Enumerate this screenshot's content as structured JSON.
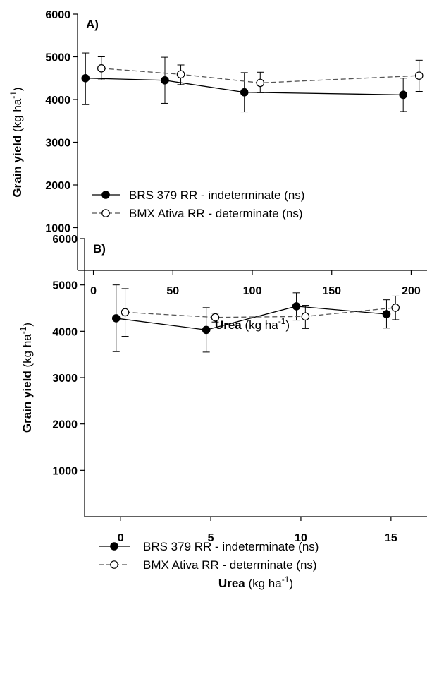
{
  "chart_data": [
    {
      "type": "line",
      "panel_label": "A)",
      "x_label_bold": "Urea",
      "x_label_unit_base": " (kg ha",
      "x_label_unit_exp": "-1",
      "x_label_unit_close": ")",
      "y_label_bold": "Grain yield",
      "y_label_unit_base": " (kg ha",
      "y_label_unit_exp": "-1",
      "y_label_unit_close": ")",
      "xlim": [
        -10,
        210
      ],
      "ylim": [
        0,
        6000
      ],
      "x_ticks": [
        0,
        50,
        100,
        150,
        200
      ],
      "y_ticks": [
        1000,
        2000,
        3000,
        4000,
        5000,
        6000
      ],
      "legend_position": "center-left",
      "series": [
        {
          "name": "BRS 379 RR - indeterminate (ns)",
          "marker": "filled-circle",
          "line": "solid",
          "x": [
            -5,
            45,
            95,
            195
          ],
          "y": [
            4500,
            4450,
            4170,
            4110
          ],
          "err_low": [
            3880,
            3910,
            3710,
            3720
          ],
          "err_high": [
            5090,
            4990,
            4630,
            4500
          ]
        },
        {
          "name": "BMX Ativa RR - determinate (ns)",
          "marker": "open-circle",
          "line": "dashed",
          "x": [
            5,
            55,
            105,
            205
          ],
          "y": [
            4730,
            4590,
            4390,
            4560
          ],
          "err_low": [
            4460,
            4350,
            4160,
            4190
          ],
          "err_high": [
            5000,
            4810,
            4640,
            4920
          ]
        }
      ]
    },
    {
      "type": "line",
      "panel_label": "B)",
      "x_label_bold": "Urea",
      "x_label_unit_base": " (kg ha",
      "x_label_unit_exp": "-1",
      "x_label_unit_close": ")",
      "y_label_bold": "Grain yield",
      "y_label_unit_base": " (kg ha",
      "y_label_unit_exp": "-1",
      "y_label_unit_close": ")",
      "xlim": [
        -2,
        17
      ],
      "ylim": [
        0,
        6000
      ],
      "x_ticks": [
        0,
        5,
        10,
        15
      ],
      "y_ticks": [
        1000,
        2000,
        3000,
        4000,
        5000,
        6000
      ],
      "legend_position": "center-left",
      "series": [
        {
          "name": "BRS 379 RR - indeterminate (ns)",
          "marker": "filled-circle",
          "line": "solid",
          "x": [
            -0.25,
            4.75,
            9.75,
            14.75
          ],
          "y": [
            4280,
            4030,
            4540,
            4370
          ],
          "err_low": [
            3560,
            3550,
            4240,
            4070
          ],
          "err_high": [
            5000,
            4510,
            4830,
            4680
          ]
        },
        {
          "name": "BMX Ativa RR - determinate (ns)",
          "marker": "open-circle",
          "line": "dashed",
          "x": [
            0.25,
            5.25,
            10.25,
            15.25
          ],
          "y": [
            4410,
            4300,
            4320,
            4510
          ],
          "err_low": [
            3890,
            4200,
            4060,
            4250
          ],
          "err_high": [
            4920,
            4390,
            4560,
            4760
          ]
        }
      ]
    }
  ]
}
